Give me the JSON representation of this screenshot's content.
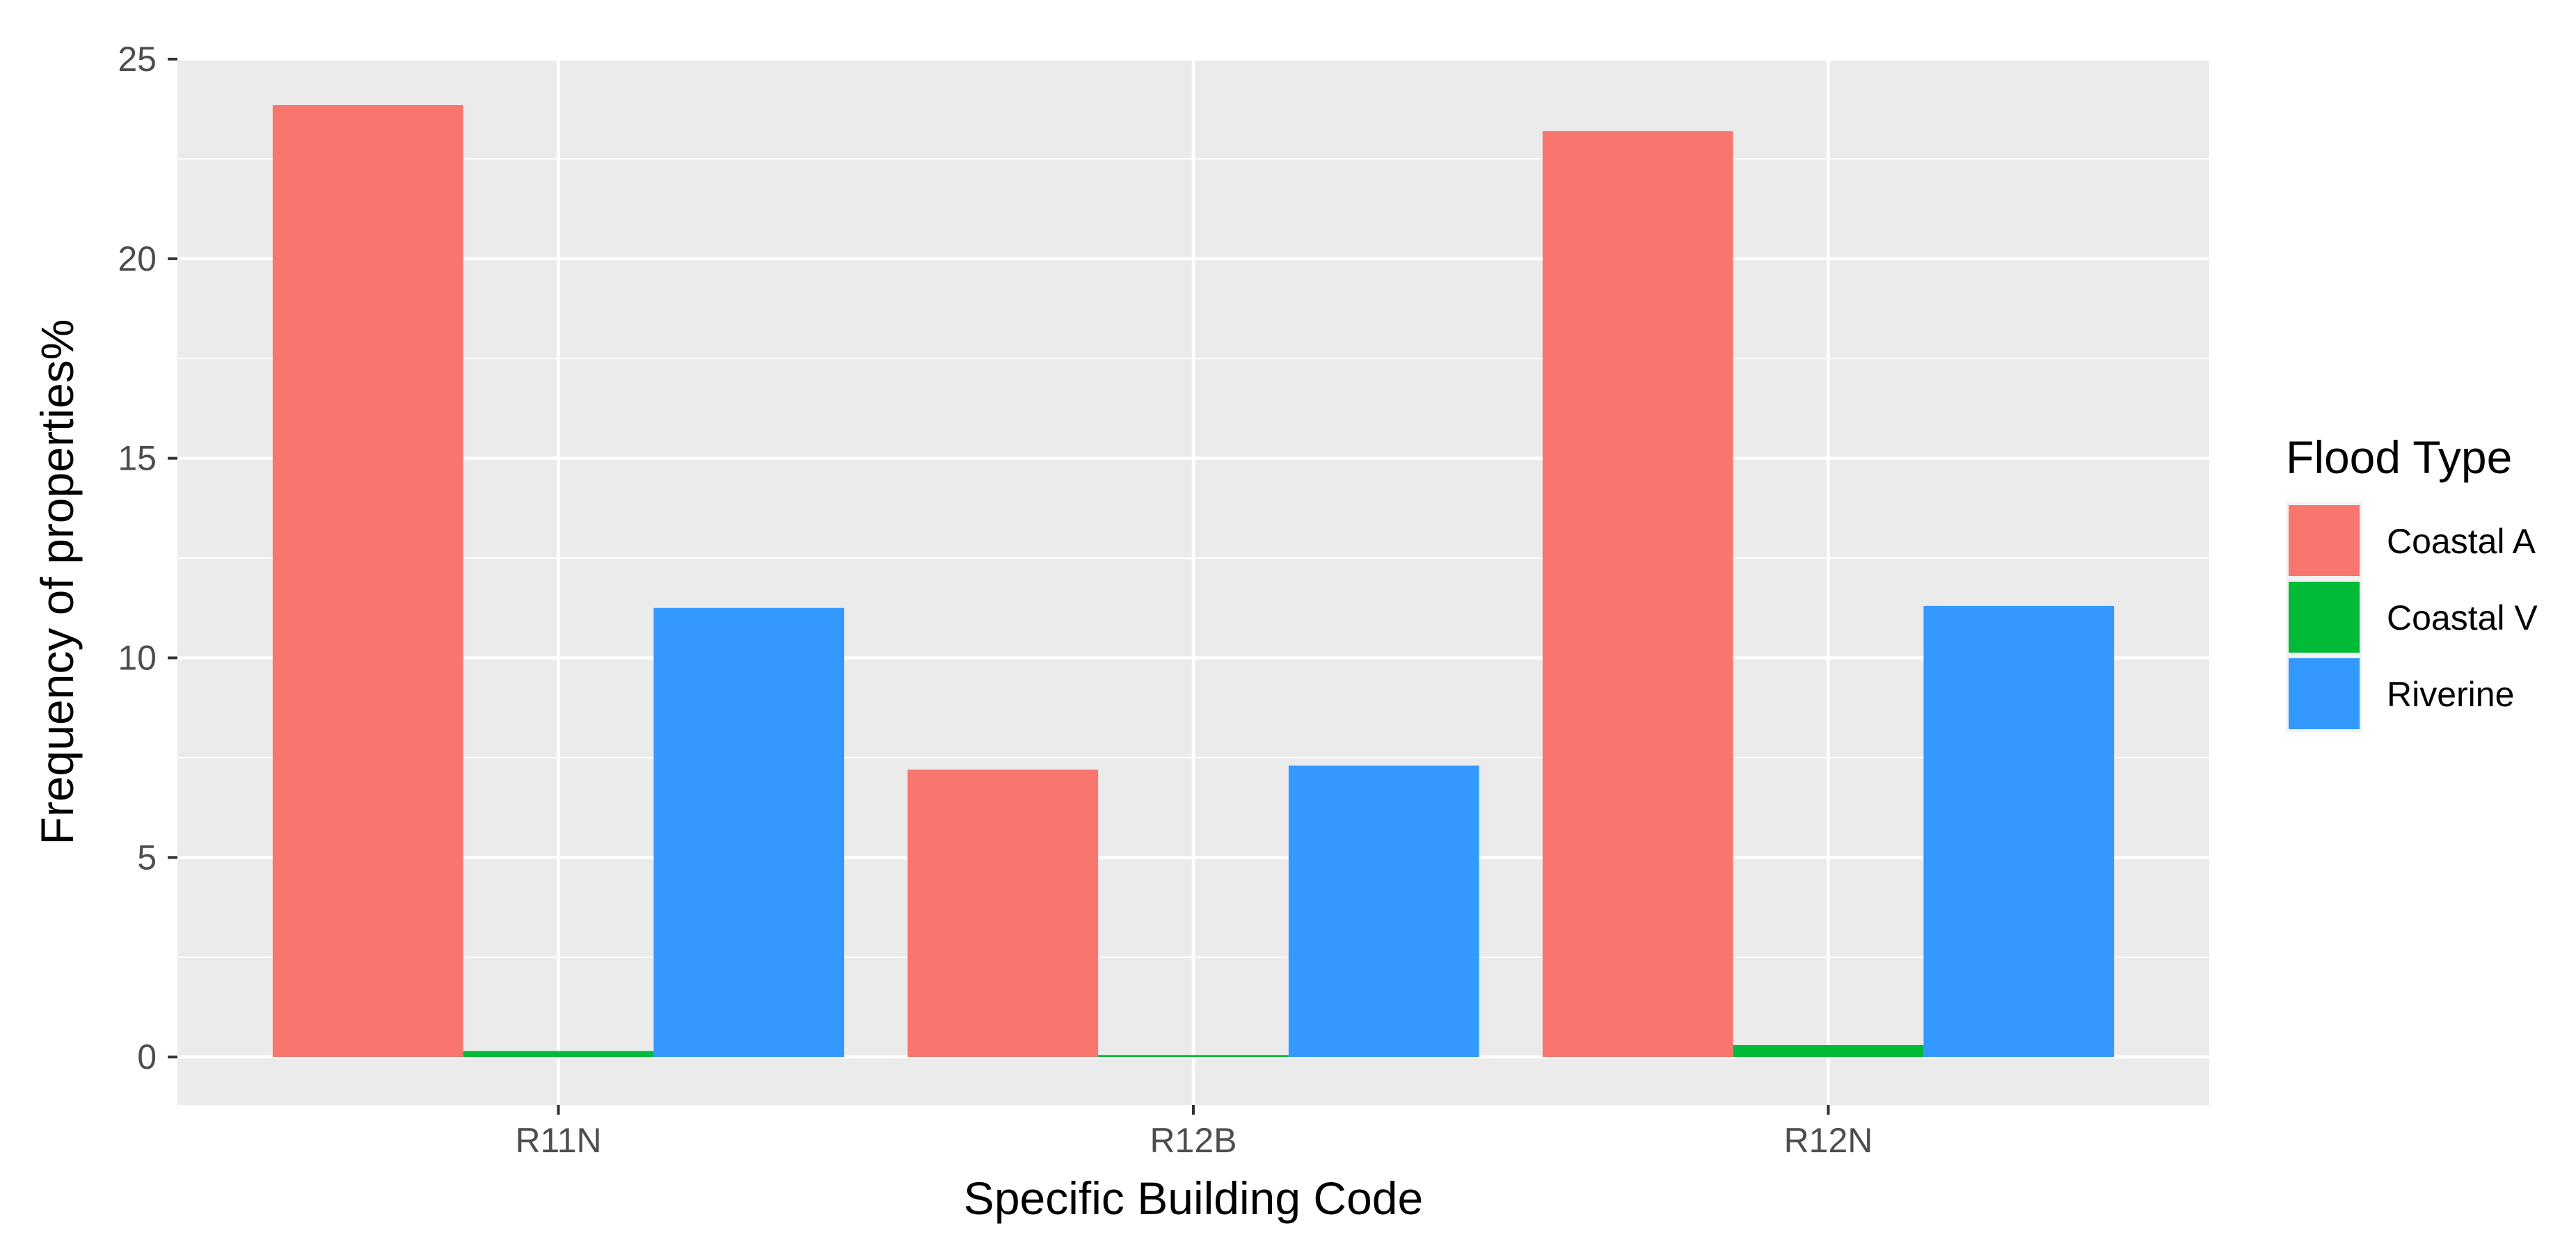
{
  "chart_data": {
    "type": "bar",
    "xlabel": "Specific Building Code",
    "ylabel": "Frequency of properties%",
    "categories": [
      "R11N",
      "R12B",
      "R12N"
    ],
    "series": [
      {
        "name": "Coastal A",
        "values": [
          23.85,
          7.2,
          23.2
        ]
      },
      {
        "name": "Coastal V",
        "values": [
          0.15,
          0.05,
          0.3
        ]
      },
      {
        "name": "Riverine",
        "values": [
          11.25,
          7.3,
          11.3
        ]
      }
    ],
    "ylim": [
      -1.2,
      25
    ],
    "y_ticks": [
      0,
      5,
      10,
      15,
      20,
      25
    ],
    "grid": true,
    "legend": {
      "title": "Flood Type",
      "position": "right"
    },
    "colors": {
      "Coastal A": "#F8766D",
      "Coastal V": "#00BA38",
      "Riverine": "#3399FF",
      "panel_background": "#EBEBEB",
      "grid": "#FFFFFF"
    }
  }
}
